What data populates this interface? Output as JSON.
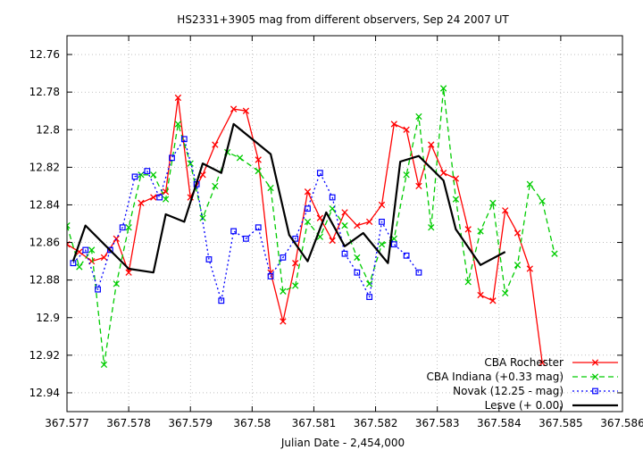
{
  "chart_data": {
    "type": "line",
    "title": "HS2331+3905 mag from different observers, Sep 24 2007 UT",
    "xlabel": "Julian Date - 2,454,000",
    "ylabel": "",
    "xlim": [
      367.577,
      367.586
    ],
    "ylim": [
      12.95,
      12.75
    ],
    "y_inverted": true,
    "grid": true,
    "legend_position": "bottom-right",
    "xticks": [
      367.577,
      367.578,
      367.579,
      367.58,
      367.581,
      367.582,
      367.583,
      367.584,
      367.585,
      367.586
    ],
    "xtick_labels": [
      "367.577",
      "367.578",
      "367.579",
      "367.58",
      "367.581",
      "367.582",
      "367.583",
      "367.584",
      "367.585",
      "367.586"
    ],
    "yticks": [
      12.76,
      12.78,
      12.8,
      12.82,
      12.84,
      12.86,
      12.88,
      12.9,
      12.92,
      12.94
    ],
    "ytick_labels": [
      "12.76",
      "12.78",
      "12.8",
      "12.82",
      "12.84",
      "12.86",
      "12.88",
      "12.9",
      "12.92",
      "12.94"
    ],
    "series": [
      {
        "name": "CBA Rochester",
        "color": "#ff0000",
        "dash": "",
        "marker": "x",
        "points": [
          [
            367.577,
            12.861
          ],
          [
            367.5772,
            12.865
          ],
          [
            367.5774,
            12.87
          ],
          [
            367.5776,
            12.868
          ],
          [
            367.5778,
            12.858
          ],
          [
            367.578,
            12.876
          ],
          [
            367.5782,
            12.839
          ],
          [
            367.5784,
            12.836
          ],
          [
            367.5786,
            12.833
          ],
          [
            367.5788,
            12.783
          ],
          [
            367.579,
            12.836
          ],
          [
            367.5792,
            12.824
          ],
          [
            367.5794,
            12.808
          ],
          [
            367.5797,
            12.789
          ],
          [
            367.5799,
            12.79
          ],
          [
            367.5801,
            12.816
          ],
          [
            367.5803,
            12.876
          ],
          [
            367.5805,
            12.902
          ],
          [
            367.5807,
            12.871
          ],
          [
            367.5809,
            12.833
          ],
          [
            367.5811,
            12.847
          ],
          [
            367.5813,
            12.859
          ],
          [
            367.5815,
            12.844
          ],
          [
            367.5817,
            12.851
          ],
          [
            367.5819,
            12.849
          ],
          [
            367.5821,
            12.84
          ],
          [
            367.5823,
            12.797
          ],
          [
            367.5825,
            12.8
          ],
          [
            367.5827,
            12.83
          ],
          [
            367.5829,
            12.808
          ],
          [
            367.5831,
            12.823
          ],
          [
            367.5833,
            12.826
          ],
          [
            367.5835,
            12.853
          ],
          [
            367.5837,
            12.888
          ],
          [
            367.5839,
            12.891
          ],
          [
            367.5841,
            12.843
          ],
          [
            367.5843,
            12.855
          ],
          [
            367.5845,
            12.874
          ],
          [
            367.5847,
            12.924
          ]
        ]
      },
      {
        "name": "CBA Indiana (+0.33 mag)",
        "color": "#00cc00",
        "dash": "6,4",
        "marker": "x",
        "points": [
          [
            367.577,
            12.851
          ],
          [
            367.5772,
            12.873
          ],
          [
            367.5774,
            12.864
          ],
          [
            367.5776,
            12.925
          ],
          [
            367.5778,
            12.882
          ],
          [
            367.578,
            12.852
          ],
          [
            367.5782,
            12.824
          ],
          [
            367.5784,
            12.824
          ],
          [
            367.5786,
            12.837
          ],
          [
            367.5788,
            12.797
          ],
          [
            367.579,
            12.818
          ],
          [
            367.5792,
            12.847
          ],
          [
            367.5794,
            12.83
          ],
          [
            367.5796,
            12.812
          ],
          [
            367.5798,
            12.815
          ],
          [
            367.5801,
            12.822
          ],
          [
            367.5803,
            12.831
          ],
          [
            367.5805,
            12.886
          ],
          [
            367.5807,
            12.883
          ],
          [
            367.5809,
            12.849
          ],
          [
            367.5811,
            12.857
          ],
          [
            367.5813,
            12.842
          ],
          [
            367.5815,
            12.851
          ],
          [
            367.5817,
            12.868
          ],
          [
            367.5819,
            12.882
          ],
          [
            367.5821,
            12.861
          ],
          [
            367.5823,
            12.858
          ],
          [
            367.5825,
            12.824
          ],
          [
            367.5827,
            12.793
          ],
          [
            367.5829,
            12.852
          ],
          [
            367.5831,
            12.778
          ],
          [
            367.5833,
            12.837
          ],
          [
            367.5835,
            12.881
          ],
          [
            367.5837,
            12.854
          ],
          [
            367.5839,
            12.839
          ],
          [
            367.5841,
            12.887
          ],
          [
            367.5843,
            12.872
          ],
          [
            367.5845,
            12.829
          ],
          [
            367.5847,
            12.838
          ],
          [
            367.5849,
            12.866
          ]
        ]
      },
      {
        "name": "Novak (12.25 - mag)",
        "color": "#0000ff",
        "dash": "2,3",
        "marker": "square",
        "points": [
          [
            367.5771,
            12.871
          ],
          [
            367.5773,
            12.864
          ],
          [
            367.5775,
            12.885
          ],
          [
            367.5777,
            12.864
          ],
          [
            367.5779,
            12.852
          ],
          [
            367.5781,
            12.825
          ],
          [
            367.5783,
            12.822
          ],
          [
            367.5785,
            12.836
          ],
          [
            367.5787,
            12.815
          ],
          [
            367.5789,
            12.805
          ],
          [
            367.5791,
            12.829
          ],
          [
            367.5793,
            12.869
          ],
          [
            367.5795,
            12.891
          ],
          [
            367.5797,
            12.854
          ],
          [
            367.5799,
            12.858
          ],
          [
            367.5801,
            12.852
          ],
          [
            367.5803,
            12.878
          ],
          [
            367.5805,
            12.868
          ],
          [
            367.5807,
            12.858
          ],
          [
            367.5809,
            12.842
          ],
          [
            367.5811,
            12.823
          ],
          [
            367.5813,
            12.836
          ],
          [
            367.5815,
            12.866
          ],
          [
            367.5817,
            12.876
          ],
          [
            367.5819,
            12.889
          ],
          [
            367.5821,
            12.849
          ],
          [
            367.5823,
            12.861
          ],
          [
            367.5825,
            12.867
          ],
          [
            367.5827,
            12.876
          ]
        ]
      },
      {
        "name": "Lesve (+ 0.00)",
        "color": "#000000",
        "dash": "",
        "marker": "none",
        "width": 2.2,
        "points": [
          [
            367.5771,
            12.87
          ],
          [
            367.5773,
            12.851
          ],
          [
            367.578,
            12.874
          ],
          [
            367.5784,
            12.876
          ],
          [
            367.5786,
            12.845
          ],
          [
            367.5789,
            12.849
          ],
          [
            367.5792,
            12.818
          ],
          [
            367.5795,
            12.823
          ],
          [
            367.5797,
            12.797
          ],
          [
            367.5803,
            12.813
          ],
          [
            367.5806,
            12.856
          ],
          [
            367.5809,
            12.87
          ],
          [
            367.5812,
            12.844
          ],
          [
            367.5815,
            12.862
          ],
          [
            367.5818,
            12.855
          ],
          [
            367.5822,
            12.871
          ],
          [
            367.5824,
            12.817
          ],
          [
            367.5827,
            12.814
          ],
          [
            367.5831,
            12.827
          ],
          [
            367.5833,
            12.853
          ],
          [
            367.5837,
            12.872
          ],
          [
            367.5841,
            12.865
          ]
        ]
      }
    ]
  }
}
